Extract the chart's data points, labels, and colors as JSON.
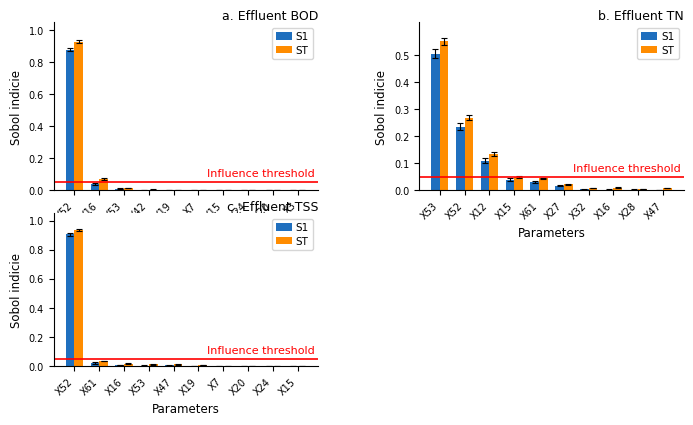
{
  "subplot_a": {
    "title": "a. Effluent BOD",
    "params": [
      "X52",
      "X16",
      "X53",
      "X42",
      "X19",
      "X7",
      "X15",
      "X24",
      "X20",
      "X3"
    ],
    "S1": [
      0.88,
      0.04,
      0.01,
      0.001,
      0.001,
      0.001,
      0.001,
      0.001,
      0.001,
      0.001
    ],
    "ST": [
      0.93,
      0.07,
      0.016,
      0.005,
      0.003,
      0.002,
      0.001,
      0.001,
      0.001,
      0.001
    ],
    "S1_err": [
      0.012,
      0.006,
      0.003,
      0.001,
      0.001,
      0.001,
      0.001,
      0.001,
      0.001,
      0.001
    ],
    "ST_err": [
      0.008,
      0.005,
      0.002,
      0.001,
      0.001,
      0.001,
      0.001,
      0.001,
      0.001,
      0.001
    ],
    "ylim": [
      0.0,
      1.05
    ],
    "yticks": [
      0.0,
      0.2,
      0.4,
      0.6,
      0.8,
      1.0
    ]
  },
  "subplot_b": {
    "title": "b. Effluent TN",
    "params": [
      "X53",
      "X52",
      "X12",
      "X15",
      "X61",
      "X27",
      "X32",
      "X16",
      "X28",
      "X47"
    ],
    "S1": [
      0.505,
      0.235,
      0.11,
      0.04,
      0.032,
      0.018,
      0.004,
      0.003,
      0.003,
      0.002
    ],
    "ST": [
      0.55,
      0.268,
      0.135,
      0.05,
      0.044,
      0.022,
      0.009,
      0.01,
      0.005,
      0.009
    ],
    "S1_err": [
      0.015,
      0.012,
      0.008,
      0.004,
      0.003,
      0.003,
      0.001,
      0.001,
      0.001,
      0.001
    ],
    "ST_err": [
      0.012,
      0.01,
      0.007,
      0.003,
      0.003,
      0.002,
      0.001,
      0.001,
      0.001,
      0.001
    ],
    "ylim": [
      0.0,
      0.62
    ],
    "yticks": [
      0.0,
      0.1,
      0.2,
      0.3,
      0.4,
      0.5
    ]
  },
  "subplot_c": {
    "title": "c. Effluent TSS",
    "params": [
      "X52",
      "X61",
      "X16",
      "X53",
      "X47",
      "X19",
      "X7",
      "X20",
      "X24",
      "X15"
    ],
    "S1": [
      0.905,
      0.022,
      0.008,
      0.004,
      0.006,
      0.002,
      0.001,
      0.001,
      0.001,
      0.001
    ],
    "ST": [
      0.935,
      0.035,
      0.018,
      0.012,
      0.012,
      0.006,
      0.003,
      0.003,
      0.002,
      0.002
    ],
    "S1_err": [
      0.01,
      0.004,
      0.002,
      0.002,
      0.002,
      0.001,
      0.001,
      0.001,
      0.001,
      0.001
    ],
    "ST_err": [
      0.008,
      0.003,
      0.002,
      0.001,
      0.001,
      0.001,
      0.001,
      0.001,
      0.001,
      0.001
    ],
    "ylim": [
      0.0,
      1.05
    ],
    "yticks": [
      0.0,
      0.2,
      0.4,
      0.6,
      0.8,
      1.0
    ]
  },
  "influence_threshold": 0.05,
  "color_S1": "#1f6fbe",
  "color_ST": "#ff8c00",
  "color_threshold": "red",
  "ylabel": "Sobol indicie",
  "xlabel": "Parameters",
  "bar_width": 0.35,
  "legend_labels": [
    "S1",
    "ST"
  ],
  "threshold_label": "Influence threshold",
  "threshold_fontsize": 8,
  "title_fontsize": 9,
  "tick_fontsize": 7,
  "label_fontsize": 8.5
}
